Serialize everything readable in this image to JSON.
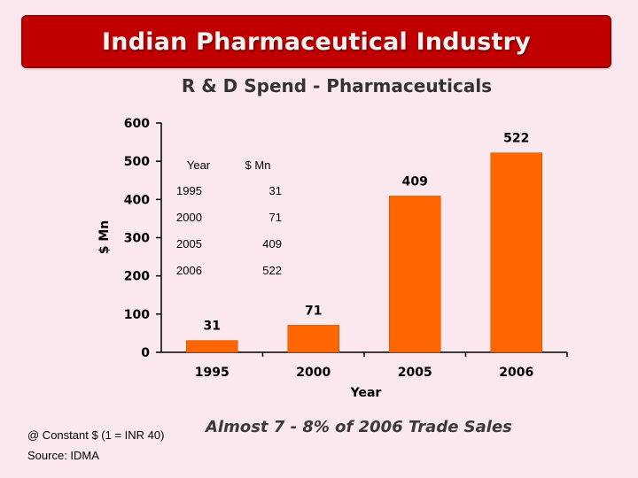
{
  "slide": {
    "title": "Indian Pharmaceutical Industry",
    "footnote": "@ Constant $ (1 = INR 40)",
    "source": "Source: IDMA",
    "note": "Almost 7 - 8% of 2006 Trade Sales"
  },
  "colors": {
    "banner": "#c00000",
    "bar": "#ff6600",
    "background": "#fbe8ef"
  },
  "inset_table": {
    "headers": [
      "Year",
      "$ Mn"
    ],
    "rows": [
      [
        "1995",
        "31"
      ],
      [
        "2000",
        "71"
      ],
      [
        "2005",
        "409"
      ],
      [
        "2006",
        "522"
      ]
    ]
  },
  "chart_data": {
    "type": "bar",
    "title": "R & D Spend - Pharmaceuticals",
    "xlabel": "Year",
    "ylabel": "$ Mn",
    "categories": [
      "1995",
      "2000",
      "2005",
      "2006"
    ],
    "values": [
      31,
      71,
      409,
      522
    ],
    "data_labels": [
      "31",
      "71",
      "409",
      "522"
    ],
    "ylim": [
      0,
      600
    ],
    "yticks": [
      0,
      100,
      200,
      300,
      400,
      500,
      600
    ],
    "ytick_labels": [
      "0",
      "100",
      "200",
      "300",
      "400",
      "500",
      "600"
    ],
    "grid": false
  }
}
